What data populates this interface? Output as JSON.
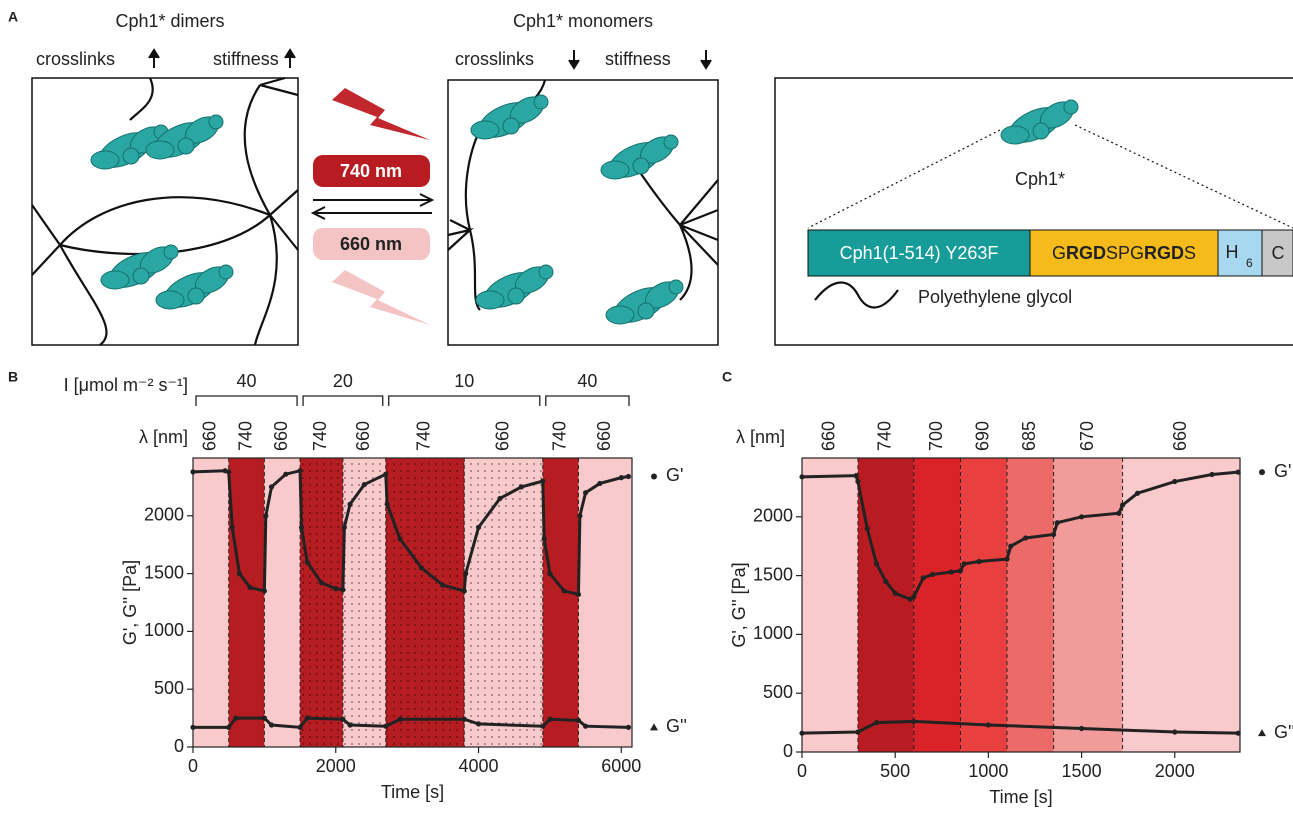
{
  "diagram": {
    "panel": "A",
    "dimers": {
      "title": "Cph1* dimers",
      "crosslinks": "crosslinks",
      "stiffness": "stiffness"
    },
    "monomers": {
      "title": "Cph1* monomers",
      "crosslinks": "crosslinks",
      "stiffness": "stiffness"
    },
    "light_far_red": "740 nm",
    "light_red": "660 nm",
    "construct": {
      "protein": "Cph1*",
      "domain": "Cph1(1-514) Y263F",
      "peptide": [
        "G",
        "RGD",
        "SPG",
        "RGD",
        "S"
      ],
      "tag": {
        "text": "H",
        "sub": "6"
      },
      "end": "C"
    },
    "legend": "Polyethylene glycol"
  },
  "chart_data": [
    {
      "type": "line",
      "panel": "B",
      "x_label": "Time [s]",
      "y_label": "G', G'' [Pa]",
      "wavelength_label": "λ [nm]",
      "intensity_label": "I [μmol m⁻² s⁻¹]",
      "xlim": [
        0,
        6150
      ],
      "xticks": [
        0,
        2000,
        4000,
        6000
      ],
      "ylim": [
        0,
        2500
      ],
      "yticks": [
        0,
        500,
        1000,
        1500,
        2000
      ],
      "regions": [
        {
          "x": [
            0,
            500
          ],
          "label": 660,
          "color": "#f8cacc",
          "dotted": false
        },
        {
          "x": [
            500,
            1000
          ],
          "label": 740,
          "color": "#b51d22",
          "dotted": false
        },
        {
          "x": [
            1000,
            1500
          ],
          "label": 660,
          "color": "#f8cacc",
          "dotted": false
        },
        {
          "x": [
            1500,
            2100
          ],
          "label": 740,
          "color": "#b51d22",
          "dotted": true
        },
        {
          "x": [
            2100,
            2700
          ],
          "label": 660,
          "color": "#f8cacc",
          "dotted": true
        },
        {
          "x": [
            2700,
            3800
          ],
          "label": 740,
          "color": "#b51d22",
          "dotted": true
        },
        {
          "x": [
            3800,
            4900
          ],
          "label": 660,
          "color": "#f8cacc",
          "dotted": true
        },
        {
          "x": [
            4900,
            5400
          ],
          "label": 740,
          "color": "#b51d22",
          "dotted": false
        },
        {
          "x": [
            5400,
            6150
          ],
          "label": 660,
          "color": "#f8cacc",
          "dotted": false
        }
      ],
      "intensity": [
        {
          "x": [
            0,
            1500
          ],
          "value": 40
        },
        {
          "x": [
            1500,
            2700
          ],
          "value": 20
        },
        {
          "x": [
            2700,
            4900
          ],
          "value": 10
        },
        {
          "x": [
            4900,
            6150
          ],
          "value": 40
        }
      ],
      "series": [
        {
          "name": "G'",
          "color": "#222222",
          "marker": "circle",
          "x": [
            0,
            450,
            500,
            550,
            650,
            800,
            1000,
            1020,
            1100,
            1300,
            1500,
            1520,
            1600,
            1800,
            2000,
            2100,
            2120,
            2200,
            2400,
            2700,
            2720,
            2900,
            3200,
            3500,
            3800,
            3820,
            4000,
            4300,
            4600,
            4900,
            4920,
            5000,
            5200,
            5400,
            5420,
            5500,
            5700,
            6000,
            6100
          ],
          "values": [
            2380,
            2390,
            2380,
            1900,
            1500,
            1380,
            1350,
            2000,
            2250,
            2360,
            2390,
            1900,
            1600,
            1420,
            1370,
            1360,
            1900,
            2100,
            2270,
            2360,
            2100,
            1800,
            1550,
            1400,
            1350,
            1500,
            1900,
            2150,
            2250,
            2300,
            1800,
            1500,
            1350,
            1320,
            2000,
            2200,
            2280,
            2330,
            2340
          ]
        },
        {
          "name": "G''",
          "color": "#222222",
          "marker": "triangle",
          "x": [
            0,
            500,
            600,
            1000,
            1100,
            1500,
            1600,
            2100,
            2200,
            2700,
            2900,
            3800,
            4000,
            4900,
            5000,
            5400,
            5500,
            6100
          ],
          "values": [
            170,
            170,
            250,
            250,
            190,
            170,
            250,
            240,
            190,
            180,
            240,
            240,
            200,
            180,
            240,
            230,
            180,
            170
          ]
        }
      ]
    },
    {
      "type": "line",
      "panel": "C",
      "x_label": "Time [s]",
      "y_label": "G', G'' [Pa]",
      "wavelength_label": "λ [nm]",
      "xlim": [
        0,
        2350
      ],
      "xticks": [
        0,
        500,
        1000,
        1500,
        2000
      ],
      "ylim": [
        0,
        2500
      ],
      "yticks": [
        0,
        500,
        1000,
        1500,
        2000
      ],
      "regions": [
        {
          "x": [
            0,
            300
          ],
          "label": 660,
          "color": "#f8cacc",
          "dotted": false
        },
        {
          "x": [
            300,
            600
          ],
          "label": 740,
          "color": "#b81c22",
          "dotted": false
        },
        {
          "x": [
            600,
            850
          ],
          "label": 700,
          "color": "#da2229",
          "dotted": false
        },
        {
          "x": [
            850,
            1100
          ],
          "label": 690,
          "color": "#e8403f",
          "dotted": false
        },
        {
          "x": [
            1100,
            1350
          ],
          "label": 685,
          "color": "#ec6b69",
          "dotted": false
        },
        {
          "x": [
            1350,
            1720
          ],
          "label": 670,
          "color": "#f19c9b",
          "dotted": false
        },
        {
          "x": [
            1720,
            2350
          ],
          "label": 660,
          "color": "#f8cacc",
          "dotted": false
        }
      ],
      "series": [
        {
          "name": "G'",
          "color": "#222222",
          "marker": "circle",
          "x": [
            0,
            290,
            300,
            350,
            400,
            450,
            500,
            580,
            600,
            650,
            700,
            800,
            850,
            870,
            950,
            1100,
            1120,
            1200,
            1350,
            1370,
            1500,
            1700,
            1720,
            1800,
            2000,
            2200,
            2340
          ],
          "values": [
            2340,
            2350,
            2300,
            1900,
            1600,
            1450,
            1350,
            1300,
            1320,
            1480,
            1510,
            1530,
            1540,
            1600,
            1620,
            1640,
            1750,
            1820,
            1850,
            1950,
            2000,
            2030,
            2100,
            2200,
            2300,
            2360,
            2380
          ]
        },
        {
          "name": "G''",
          "color": "#222222",
          "marker": "triangle",
          "x": [
            0,
            300,
            400,
            600,
            1000,
            1500,
            2000,
            2340
          ],
          "values": [
            160,
            170,
            250,
            260,
            230,
            200,
            170,
            160
          ]
        }
      ]
    }
  ]
}
